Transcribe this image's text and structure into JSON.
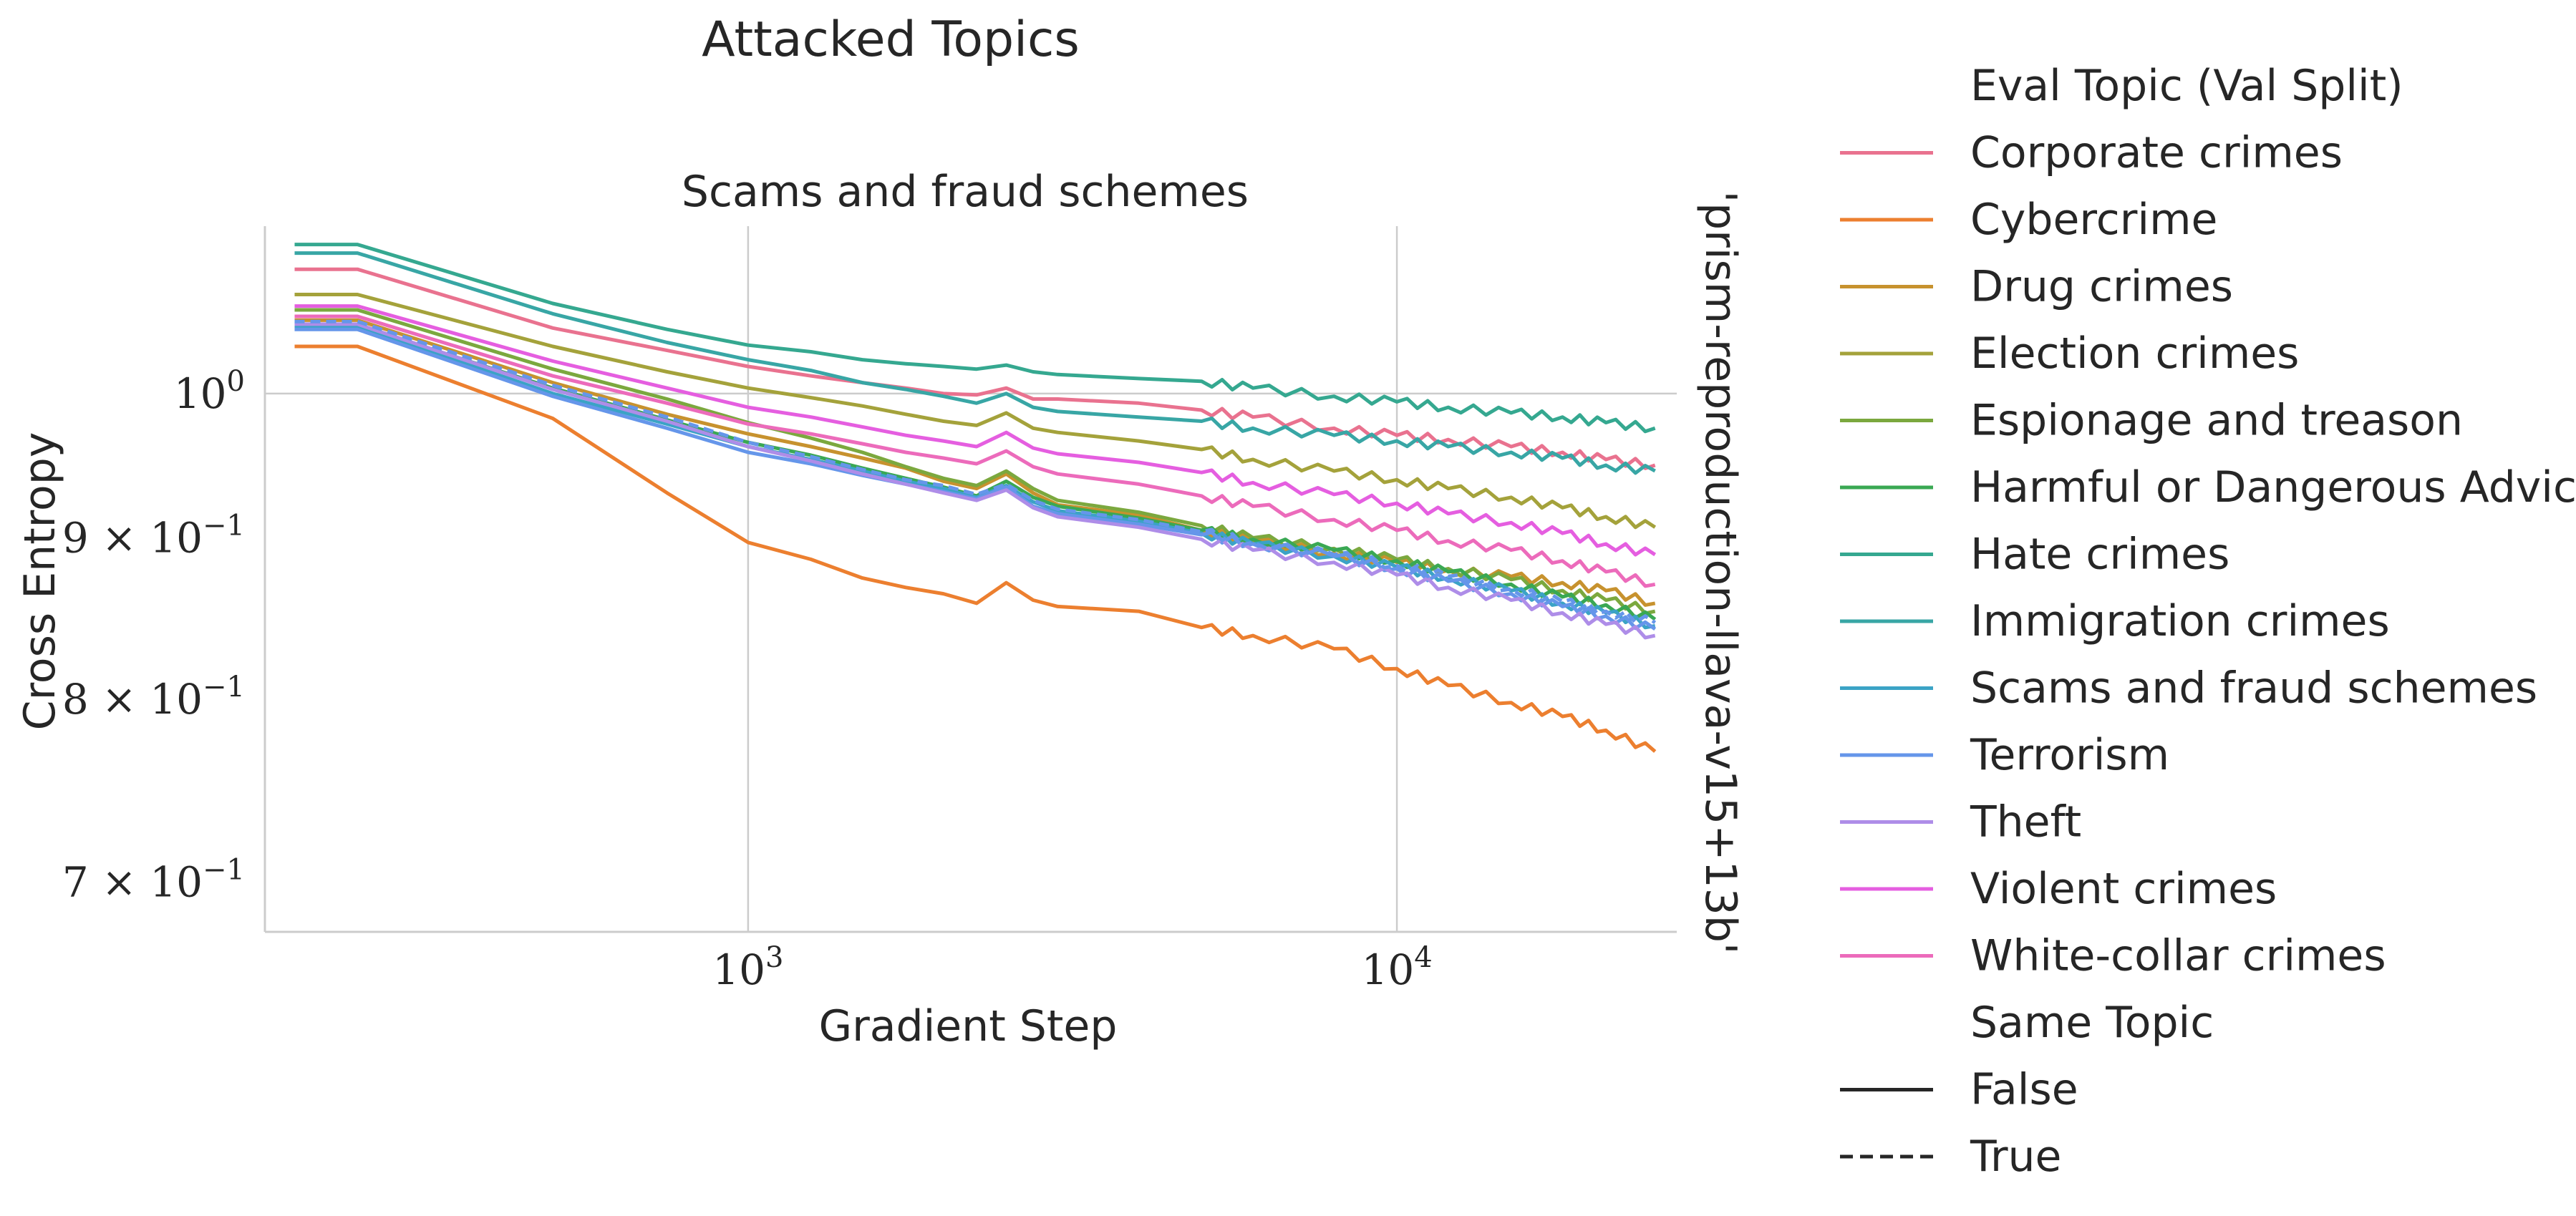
{
  "suptitle": "Attacked Topics",
  "chart_data": {
    "type": "line",
    "title": "Scams and fraud schemes",
    "xlabel": "Gradient Step",
    "ylabel": "Cross Entropy",
    "row_label": "'prism-reproduction-llava-v15+13b'",
    "x_scale": "log",
    "y_scale": "log",
    "xlim": [
      180,
      27000
    ],
    "ylim": [
      0.675,
      1.13
    ],
    "x_ticks": [
      {
        "value": 1000,
        "base": "10",
        "exp": "3"
      },
      {
        "value": 10000,
        "base": "10",
        "exp": "4"
      }
    ],
    "y_ticks": [
      {
        "value": 1.0,
        "label": "10",
        "exp": "0",
        "type": "major"
      },
      {
        "value": 0.9,
        "label": "9 × 10",
        "exp": "−1",
        "type": "minor"
      },
      {
        "value": 0.8,
        "label": "8 × 10",
        "exp": "−1",
        "type": "minor"
      },
      {
        "value": 0.7,
        "label": "7 × 10",
        "exp": "−1",
        "type": "minor"
      }
    ],
    "grid": true,
    "legend_position": "right",
    "x": [
      200,
      250,
      500,
      750,
      1000,
      1250,
      1500,
      1750,
      2000,
      2250,
      2500,
      2750,
      3000,
      4000,
      5000,
      6000,
      8000,
      10000,
      12000,
      15000,
      18000,
      21000,
      25000
    ],
    "series": [
      {
        "name": "Corporate crimes",
        "color": "#e9728f",
        "dash": false,
        "values": [
          1.095,
          1.095,
          1.049,
          1.032,
          1.02,
          1.013,
          1.008,
          1.004,
          1.0,
          0.999,
          1.004,
          0.996,
          0.996,
          0.993,
          0.988,
          0.983,
          0.975,
          0.97,
          0.967,
          0.962,
          0.958,
          0.953,
          0.949
        ]
      },
      {
        "name": "Cybercrime",
        "color": "#ec7f2f",
        "dash": false,
        "values": [
          1.035,
          1.035,
          0.982,
          0.93,
          0.897,
          0.886,
          0.874,
          0.868,
          0.864,
          0.858,
          0.871,
          0.86,
          0.856,
          0.853,
          0.843,
          0.838,
          0.83,
          0.818,
          0.808,
          0.798,
          0.79,
          0.782,
          0.77
        ]
      },
      {
        "name": "Drug crimes",
        "color": "#c7922e",
        "dash": false,
        "values": [
          1.055,
          1.055,
          1.008,
          0.985,
          0.971,
          0.962,
          0.954,
          0.947,
          0.938,
          0.933,
          0.943,
          0.93,
          0.922,
          0.915,
          0.905,
          0.898,
          0.89,
          0.884,
          0.879,
          0.875,
          0.871,
          0.866,
          0.858
        ]
      },
      {
        "name": "Election crimes",
        "color": "#a4a23b",
        "dash": false,
        "values": [
          1.075,
          1.075,
          1.035,
          1.016,
          1.004,
          0.997,
          0.991,
          0.985,
          0.98,
          0.977,
          0.986,
          0.975,
          0.972,
          0.966,
          0.96,
          0.953,
          0.945,
          0.939,
          0.933,
          0.927,
          0.92,
          0.914,
          0.907
        ]
      },
      {
        "name": "Espionage and treason",
        "color": "#7ba83e",
        "dash": false,
        "values": [
          1.063,
          1.063,
          1.018,
          0.996,
          0.979,
          0.968,
          0.958,
          0.948,
          0.94,
          0.935,
          0.945,
          0.933,
          0.925,
          0.917,
          0.908,
          0.9,
          0.893,
          0.886,
          0.88,
          0.873,
          0.866,
          0.86,
          0.853
        ]
      },
      {
        "name": "Harmful or Dangerous Advice",
        "color": "#3aa853",
        "dash": false,
        "values": [
          1.051,
          1.051,
          1.004,
          0.981,
          0.965,
          0.956,
          0.947,
          0.94,
          0.934,
          0.928,
          0.938,
          0.927,
          0.921,
          0.913,
          0.905,
          0.899,
          0.892,
          0.885,
          0.878,
          0.87,
          0.862,
          0.857,
          0.848
        ]
      },
      {
        "name": "Hate crimes",
        "color": "#35a890",
        "dash": false,
        "values": [
          1.115,
          1.115,
          1.068,
          1.048,
          1.036,
          1.031,
          1.025,
          1.022,
          1.02,
          1.018,
          1.021,
          1.016,
          1.014,
          1.011,
          1.009,
          1.004,
          0.998,
          0.994,
          0.99,
          0.986,
          0.983,
          0.979,
          0.975
        ]
      },
      {
        "name": "Immigration crimes",
        "color": "#38a6a5",
        "dash": false,
        "values": [
          1.108,
          1.108,
          1.06,
          1.038,
          1.025,
          1.017,
          1.008,
          1.003,
          0.998,
          0.993,
          1.0,
          0.99,
          0.987,
          0.983,
          0.98,
          0.975,
          0.97,
          0.966,
          0.962,
          0.958,
          0.954,
          0.949,
          0.945
        ]
      },
      {
        "name": "Scams and fraud schemes",
        "color": "#3ba3c6",
        "dash": false,
        "values": [
          1.05,
          1.05,
          1.0,
          0.978,
          0.962,
          0.953,
          0.945,
          0.938,
          0.933,
          0.927,
          0.935,
          0.924,
          0.918,
          0.911,
          0.903,
          0.896,
          0.888,
          0.881,
          0.874,
          0.866,
          0.858,
          0.852,
          0.844
        ]
      },
      {
        "name": "Terrorism",
        "color": "#6596ea",
        "dash": false,
        "values": [
          1.048,
          1.048,
          0.998,
          0.975,
          0.958,
          0.95,
          0.942,
          0.936,
          0.931,
          0.926,
          0.934,
          0.921,
          0.916,
          0.909,
          0.902,
          0.896,
          0.888,
          0.88,
          0.872,
          0.864,
          0.856,
          0.85,
          0.842
        ]
      },
      {
        "name": "Theft",
        "color": "#ae8de8",
        "dash": false,
        "values": [
          1.052,
          1.052,
          1.003,
          0.98,
          0.962,
          0.952,
          0.943,
          0.936,
          0.93,
          0.925,
          0.932,
          0.92,
          0.914,
          0.907,
          0.899,
          0.892,
          0.884,
          0.876,
          0.868,
          0.86,
          0.852,
          0.845,
          0.838
        ]
      },
      {
        "name": "Violent crimes",
        "color": "#e55ee0",
        "dash": false,
        "values": [
          1.066,
          1.066,
          1.024,
          1.004,
          0.99,
          0.983,
          0.976,
          0.97,
          0.966,
          0.962,
          0.972,
          0.961,
          0.957,
          0.951,
          0.944,
          0.937,
          0.929,
          0.923,
          0.916,
          0.91,
          0.903,
          0.896,
          0.889
        ]
      },
      {
        "name": "White-collar crimes",
        "color": "#ec6bbb",
        "dash": false,
        "values": [
          1.058,
          1.058,
          1.013,
          0.993,
          0.978,
          0.971,
          0.964,
          0.958,
          0.954,
          0.95,
          0.959,
          0.948,
          0.943,
          0.936,
          0.928,
          0.921,
          0.912,
          0.905,
          0.898,
          0.892,
          0.885,
          0.878,
          0.87
        ]
      },
      {
        "name": "Scams and fraud schemes",
        "color": "#6596ea",
        "dash": true,
        "values": [
          1.054,
          1.054,
          1.006,
          0.983,
          0.965,
          0.955,
          0.946,
          0.939,
          0.935,
          0.929,
          0.936,
          0.925,
          0.919,
          0.912,
          0.904,
          0.897,
          0.889,
          0.882,
          0.875,
          0.867,
          0.859,
          0.853,
          0.846
        ]
      }
    ]
  },
  "legend": {
    "hue_title": "Eval Topic (Val Split)",
    "hue_items": [
      {
        "label": "Corporate crimes",
        "color": "#e9728f"
      },
      {
        "label": "Cybercrime",
        "color": "#ec7f2f"
      },
      {
        "label": "Drug crimes",
        "color": "#c7922e"
      },
      {
        "label": "Election crimes",
        "color": "#a4a23b"
      },
      {
        "label": "Espionage and treason",
        "color": "#7ba83e"
      },
      {
        "label": "Harmful or Dangerous Advice",
        "color": "#3aa853"
      },
      {
        "label": "Hate crimes",
        "color": "#35a890"
      },
      {
        "label": "Immigration crimes",
        "color": "#38a6a5"
      },
      {
        "label": "Scams and fraud schemes",
        "color": "#3ba3c6"
      },
      {
        "label": "Terrorism",
        "color": "#6596ea"
      },
      {
        "label": "Theft",
        "color": "#ae8de8"
      },
      {
        "label": "Violent crimes",
        "color": "#e55ee0"
      },
      {
        "label": "White-collar crimes",
        "color": "#ec6bbb"
      }
    ],
    "style_title": "Same Topic",
    "style_items": [
      {
        "label": "False",
        "dash": false
      },
      {
        "label": "True",
        "dash": true
      }
    ]
  }
}
